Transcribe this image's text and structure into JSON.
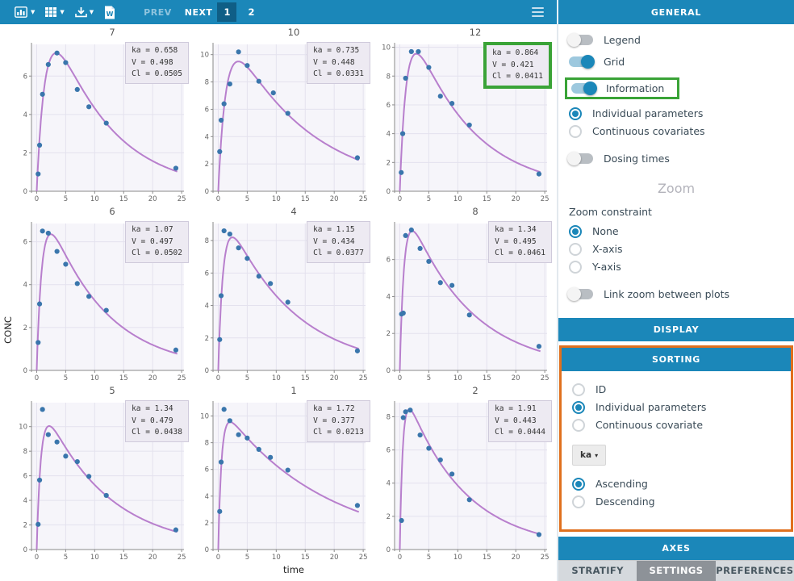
{
  "toolbar": {
    "icons": [
      "plot-type",
      "layout-grid",
      "export-download",
      "export-word"
    ],
    "menu_icon": "menu",
    "prev": "PREV",
    "next": "NEXT",
    "pages": [
      {
        "label": "1",
        "active": true
      },
      {
        "label": "2",
        "active": false
      }
    ]
  },
  "sidebar": {
    "title": "GENERAL",
    "toggles": [
      {
        "label": "Legend",
        "on": false
      },
      {
        "label": "Grid",
        "on": true
      },
      {
        "label": "Information",
        "on": true,
        "highlighted": true
      }
    ],
    "display_radios": [
      {
        "label": "Individual parameters",
        "selected": true
      },
      {
        "label": "Continuous covariates",
        "selected": false
      }
    ],
    "dosing_toggle": {
      "label": "Dosing times",
      "on": false
    },
    "zoom_heading": "Zoom",
    "zoom_constraint_label": "Zoom constraint",
    "zoom_radios": [
      {
        "label": "None",
        "selected": true
      },
      {
        "label": "X-axis",
        "selected": false
      },
      {
        "label": "Y-axis",
        "selected": false
      }
    ],
    "link_zoom_toggle": {
      "label": "Link zoom between plots",
      "on": false
    },
    "sections": {
      "display": "DISPLAY",
      "sorting": "SORTING",
      "axes": "AXES"
    },
    "sorting_radios": [
      {
        "label": "ID",
        "selected": false
      },
      {
        "label": "Individual parameters",
        "selected": true
      },
      {
        "label": "Continuous covariate",
        "selected": false
      }
    ],
    "sorting_param_button": "ka",
    "order_radios": [
      {
        "label": "Ascending",
        "selected": true
      },
      {
        "label": "Descending",
        "selected": false
      }
    ],
    "tabs": [
      {
        "label": "STRATIFY",
        "active": false
      },
      {
        "label": "SETTINGS",
        "active": true
      },
      {
        "label": "PREFERENCES",
        "active": false
      }
    ],
    "highlight_colors": {
      "green": "#3aa337",
      "orange": "#e0701e"
    },
    "accent_color": "#1b87b9"
  },
  "chart_data": {
    "type": "line",
    "description": "Individual fits: observed concentrations (scatter) with individual model prediction curves vs time, 3x3 grid sorted by ka ascending",
    "xlabel": "time",
    "ylabel": "CONC",
    "x_ticks": [
      0,
      5,
      10,
      15,
      20,
      25
    ],
    "xlim": [
      -0.9,
      25.4
    ],
    "grid": true,
    "legend": false,
    "colors": {
      "curve": "#b87fcd",
      "points": "#3a76ac",
      "plot_bg": "#f6f5fa",
      "grid": "#e4e2ee",
      "axis": "#8a8a8a"
    },
    "plots": [
      {
        "id": "7",
        "ka": 0.658,
        "V": 0.498,
        "Cl": 0.0505,
        "info_lines": [
          "ka = 0.658",
          "V = 0.498",
          "Cl = 0.0505"
        ],
        "info_highlight": false,
        "ylim": 7.65,
        "y_ticks": [
          0,
          2,
          4,
          6
        ],
        "curve_peak": 7.2,
        "points": [
          [
            0.25,
            0.9
          ],
          [
            0.5,
            2.4
          ],
          [
            1,
            5.05
          ],
          [
            2,
            6.6
          ],
          [
            3.5,
            7.2
          ],
          [
            5,
            6.7
          ],
          [
            7,
            5.3
          ],
          [
            9,
            4.4
          ],
          [
            12,
            3.55
          ],
          [
            24,
            1.2
          ]
        ]
      },
      {
        "id": "10",
        "ka": 0.735,
        "V": 0.448,
        "Cl": 0.0331,
        "info_lines": [
          "ka = 0.735",
          "V = 0.448",
          "Cl = 0.0331"
        ],
        "info_highlight": false,
        "ylim": 10.75,
        "y_ticks": [
          0,
          2,
          4,
          6,
          8,
          10
        ],
        "curve_peak": 9.5,
        "points": [
          [
            0.25,
            2.9
          ],
          [
            0.5,
            5.2
          ],
          [
            1,
            6.4
          ],
          [
            2,
            7.85
          ],
          [
            3.5,
            10.2
          ],
          [
            5,
            9.2
          ],
          [
            7,
            8.05
          ],
          [
            9.5,
            7.2
          ],
          [
            12,
            5.7
          ],
          [
            24,
            2.45
          ]
        ]
      },
      {
        "id": "12",
        "ka": 0.864,
        "V": 0.421,
        "Cl": 0.0411,
        "info_lines": [
          "ka = 0.864",
          "V = 0.421",
          "Cl = 0.0411"
        ],
        "info_highlight": true,
        "ylim": 10.2,
        "y_ticks": [
          0,
          2,
          4,
          6,
          8,
          10
        ],
        "curve_peak": 9.55,
        "points": [
          [
            0.25,
            1.3
          ],
          [
            0.5,
            4.0
          ],
          [
            1,
            7.85
          ],
          [
            2,
            9.7
          ],
          [
            3.2,
            9.7
          ],
          [
            5,
            8.6
          ],
          [
            7,
            6.6
          ],
          [
            9,
            6.1
          ],
          [
            12,
            4.6
          ],
          [
            24,
            1.2
          ]
        ]
      },
      {
        "id": "6",
        "ka": 1.07,
        "V": 0.497,
        "Cl": 0.0502,
        "info_lines": [
          "ka = 1.07",
          "V = 0.497",
          "Cl = 0.0502"
        ],
        "info_highlight": false,
        "ylim": 6.85,
        "y_ticks": [
          0,
          2,
          4,
          6
        ],
        "curve_peak": 6.35,
        "points": [
          [
            0.25,
            1.3
          ],
          [
            0.5,
            3.1
          ],
          [
            1,
            6.5
          ],
          [
            2,
            6.4
          ],
          [
            3.5,
            5.55
          ],
          [
            5,
            4.95
          ],
          [
            7,
            4.05
          ],
          [
            9,
            3.45
          ],
          [
            12,
            2.8
          ],
          [
            24,
            0.95
          ]
        ]
      },
      {
        "id": "4",
        "ka": 1.15,
        "V": 0.434,
        "Cl": 0.0377,
        "info_lines": [
          "ka = 1.15",
          "V = 0.434",
          "Cl = 0.0377"
        ],
        "info_highlight": false,
        "ylim": 9.05,
        "y_ticks": [
          0,
          2,
          4,
          6,
          8
        ],
        "curve_peak": 8.2,
        "points": [
          [
            0.25,
            1.9
          ],
          [
            0.5,
            4.6
          ],
          [
            1,
            8.6
          ],
          [
            2,
            8.4
          ],
          [
            3.5,
            7.55
          ],
          [
            5,
            6.9
          ],
          [
            7,
            5.8
          ],
          [
            9,
            5.35
          ],
          [
            12,
            4.2
          ],
          [
            24,
            1.2
          ]
        ]
      },
      {
        "id": "8",
        "ka": 1.34,
        "V": 0.495,
        "Cl": 0.0461,
        "info_lines": [
          "ka = 1.34",
          "V = 0.495",
          "Cl = 0.0461"
        ],
        "info_highlight": false,
        "ylim": 7.95,
        "y_ticks": [
          0,
          2,
          4,
          6
        ],
        "curve_peak": 7.55,
        "points": [
          [
            0.3,
            3.05
          ],
          [
            0.6,
            3.1
          ],
          [
            1,
            7.3
          ],
          [
            2,
            7.6
          ],
          [
            3.5,
            6.6
          ],
          [
            5,
            5.9
          ],
          [
            7,
            4.75
          ],
          [
            9,
            4.6
          ],
          [
            12,
            3.0
          ],
          [
            24,
            1.3
          ]
        ]
      },
      {
        "id": "5",
        "ka": 1.34,
        "V": 0.479,
        "Cl": 0.0438,
        "info_lines": [
          "ka = 1.34",
          "V = 0.479",
          "Cl = 0.0438"
        ],
        "info_highlight": false,
        "ylim": 11.95,
        "y_ticks": [
          0,
          2,
          4,
          6,
          8,
          10
        ],
        "curve_peak": 10.05,
        "points": [
          [
            0.25,
            2.05
          ],
          [
            0.5,
            5.65
          ],
          [
            1,
            11.4
          ],
          [
            2,
            9.35
          ],
          [
            3.5,
            8.75
          ],
          [
            5,
            7.6
          ],
          [
            7,
            7.15
          ],
          [
            9,
            5.95
          ],
          [
            12,
            4.4
          ],
          [
            24,
            1.6
          ]
        ]
      },
      {
        "id": "1",
        "ka": 1.72,
        "V": 0.377,
        "Cl": 0.0213,
        "info_lines": [
          "ka = 1.72",
          "V = 0.377",
          "Cl = 0.0213"
        ],
        "info_highlight": false,
        "ylim": 11.0,
        "y_ticks": [
          0,
          2,
          4,
          6,
          8,
          10
        ],
        "curve_peak": 9.55,
        "points": [
          [
            0.25,
            2.85
          ],
          [
            0.5,
            6.55
          ],
          [
            1,
            10.5
          ],
          [
            2,
            9.65
          ],
          [
            3.5,
            8.6
          ],
          [
            5,
            8.35
          ],
          [
            7,
            7.5
          ],
          [
            9,
            6.9
          ],
          [
            12,
            5.95
          ],
          [
            24,
            3.3
          ]
        ]
      },
      {
        "id": "2",
        "ka": 1.91,
        "V": 0.443,
        "Cl": 0.0444,
        "info_lines": [
          "ka = 1.91",
          "V = 0.443",
          "Cl = 0.0444"
        ],
        "info_highlight": false,
        "ylim": 8.85,
        "y_ticks": [
          0,
          2,
          4,
          6,
          8
        ],
        "curve_peak": 8.45,
        "points": [
          [
            0.3,
            1.75
          ],
          [
            0.6,
            7.95
          ],
          [
            1,
            8.3
          ],
          [
            1.8,
            8.4
          ],
          [
            3.5,
            6.9
          ],
          [
            5,
            6.1
          ],
          [
            7,
            5.4
          ],
          [
            9,
            4.55
          ],
          [
            12,
            3.0
          ],
          [
            24,
            0.9
          ]
        ]
      }
    ]
  }
}
